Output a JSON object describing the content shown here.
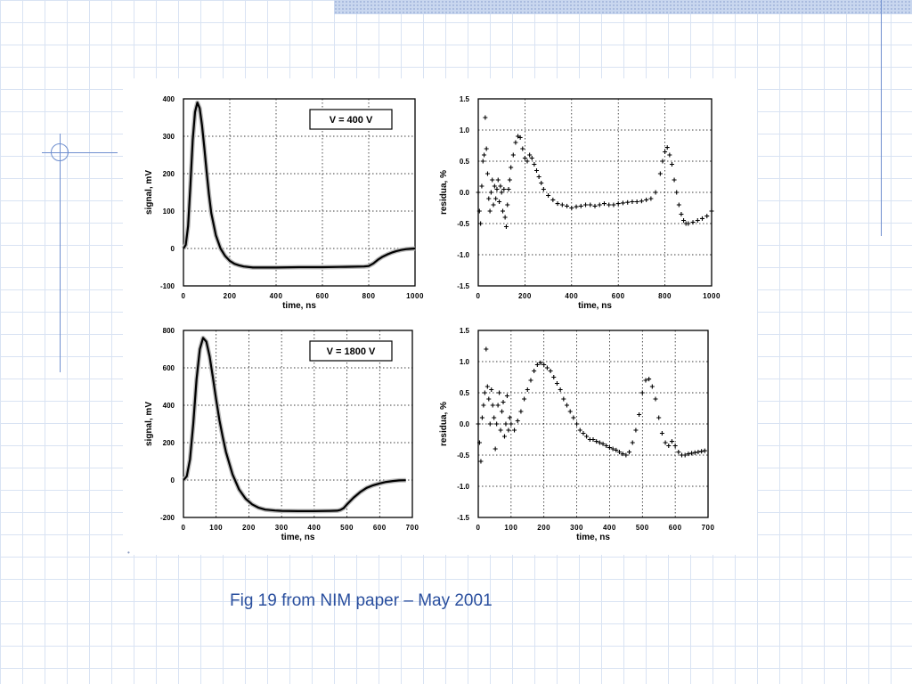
{
  "caption": "Fig 19 from NIM paper – May 2001",
  "chart_data": [
    {
      "type": "line",
      "panel": "top-left",
      "annotation": "V = 400 V",
      "xlabel": "time, ns",
      "ylabel": "signal, mV",
      "xlim": [
        0,
        1000
      ],
      "ylim": [
        -100,
        400
      ],
      "xticks": [
        0,
        200,
        400,
        600,
        800,
        1000
      ],
      "yticks": [
        -100,
        0,
        100,
        200,
        300,
        400
      ],
      "ytick_labels": [
        "-100",
        "0",
        "100",
        "200",
        "300",
        "400"
      ],
      "grid": true,
      "series": [
        {
          "x": [
            0,
            10,
            20,
            30,
            40,
            50,
            60,
            70,
            80,
            90,
            100,
            110,
            120,
            140,
            160,
            180,
            200,
            220,
            240,
            260,
            300,
            400,
            500,
            600,
            700,
            780,
            800,
            820,
            840,
            860,
            880,
            900,
            920,
            940,
            960,
            980,
            1000
          ],
          "values": [
            0,
            10,
            60,
            170,
            290,
            365,
            390,
            375,
            330,
            270,
            205,
            145,
            95,
            35,
            0,
            -20,
            -33,
            -41,
            -45,
            -48,
            -51,
            -51,
            -50,
            -50,
            -49,
            -48,
            -47,
            -40,
            -30,
            -22,
            -16,
            -11,
            -7,
            -4,
            -2,
            -1,
            0
          ]
        }
      ]
    },
    {
      "type": "scatter",
      "panel": "top-right",
      "xlabel": "time, ns",
      "ylabel": "residua, %",
      "xlim": [
        0,
        1000
      ],
      "ylim": [
        -1.5,
        1.5
      ],
      "xticks": [
        0,
        200,
        400,
        600,
        800,
        1000
      ],
      "yticks": [
        -1.5,
        -1.0,
        -0.5,
        0.0,
        0.5,
        1.0,
        1.5
      ],
      "ytick_labels": [
        "-1.5",
        "-1.0",
        "-0.5",
        "0.0",
        "0.5",
        "1.0",
        "1.5"
      ],
      "grid": true,
      "series": [
        {
          "x": [
            0,
            5,
            10,
            15,
            20,
            25,
            30,
            35,
            40,
            45,
            50,
            55,
            60,
            65,
            70,
            75,
            80,
            85,
            90,
            95,
            100,
            105,
            110,
            115,
            120,
            125,
            130,
            135,
            140,
            150,
            160,
            170,
            180,
            190,
            200,
            210,
            220,
            230,
            240,
            250,
            260,
            270,
            280,
            300,
            320,
            340,
            360,
            380,
            400,
            420,
            440,
            460,
            480,
            500,
            520,
            540,
            560,
            580,
            600,
            620,
            640,
            660,
            680,
            700,
            720,
            740,
            760,
            780,
            790,
            800,
            810,
            820,
            830,
            840,
            850,
            860,
            870,
            880,
            890,
            900,
            920,
            940,
            960,
            980,
            1000
          ],
          "values": [
            0.0,
            -0.3,
            -0.5,
            0.1,
            0.5,
            0.6,
            1.2,
            0.7,
            0.3,
            -0.1,
            -0.3,
            0.0,
            0.2,
            -0.2,
            0.1,
            -0.1,
            0.05,
            0.2,
            -0.15,
            0.1,
            0.0,
            -0.3,
            0.05,
            -0.4,
            -0.55,
            -0.2,
            0.05,
            0.2,
            0.4,
            0.6,
            0.8,
            0.9,
            0.88,
            0.7,
            0.55,
            0.5,
            0.6,
            0.55,
            0.45,
            0.35,
            0.25,
            0.15,
            0.05,
            -0.05,
            -0.12,
            -0.18,
            -0.2,
            -0.22,
            -0.25,
            -0.23,
            -0.22,
            -0.2,
            -0.2,
            -0.22,
            -0.2,
            -0.18,
            -0.2,
            -0.2,
            -0.18,
            -0.17,
            -0.16,
            -0.15,
            -0.15,
            -0.14,
            -0.12,
            -0.1,
            0.0,
            0.3,
            0.5,
            0.65,
            0.72,
            0.6,
            0.45,
            0.2,
            0.0,
            -0.2,
            -0.35,
            -0.45,
            -0.5,
            -0.5,
            -0.48,
            -0.45,
            -0.42,
            -0.38,
            -0.3
          ]
        }
      ]
    },
    {
      "type": "line",
      "panel": "bottom-left",
      "annotation": "V = 1800 V",
      "xlabel": "time, ns",
      "ylabel": "signal, mV",
      "xlim": [
        0,
        700
      ],
      "ylim": [
        -200,
        800
      ],
      "xticks": [
        0,
        100,
        200,
        300,
        400,
        500,
        600,
        700
      ],
      "yticks": [
        -200,
        0,
        200,
        400,
        600,
        800
      ],
      "ytick_labels": [
        "-200",
        "0",
        "200",
        "400",
        "600",
        "800"
      ],
      "grid": true,
      "series": [
        {
          "x": [
            0,
            10,
            20,
            30,
            40,
            50,
            60,
            70,
            80,
            90,
            100,
            110,
            120,
            130,
            150,
            170,
            190,
            210,
            230,
            250,
            280,
            300,
            350,
            400,
            450,
            470,
            480,
            490,
            500,
            520,
            540,
            560,
            580,
            600,
            620,
            640,
            660,
            680
          ],
          "values": [
            0,
            20,
            110,
            300,
            540,
            700,
            760,
            740,
            660,
            550,
            430,
            320,
            230,
            150,
            30,
            -50,
            -100,
            -130,
            -148,
            -158,
            -163,
            -165,
            -166,
            -166,
            -165,
            -164,
            -160,
            -150,
            -130,
            -95,
            -65,
            -42,
            -28,
            -18,
            -10,
            -5,
            -2,
            -1
          ]
        }
      ]
    },
    {
      "type": "scatter",
      "panel": "bottom-right",
      "xlabel": "time, ns",
      "ylabel": "residua, %",
      "xlim": [
        0,
        700
      ],
      "ylim": [
        -1.5,
        1.5
      ],
      "xticks": [
        0,
        100,
        200,
        300,
        400,
        500,
        600,
        700
      ],
      "yticks": [
        -1.5,
        -1.0,
        -0.5,
        0.0,
        0.5,
        1.0,
        1.5
      ],
      "ytick_labels": [
        "-1.5",
        "-1.0",
        "-0.5",
        "0.0",
        "0.5",
        "1.0",
        "1.5"
      ],
      "grid": true,
      "series": [
        {
          "x": [
            0,
            4,
            8,
            12,
            16,
            20,
            24,
            28,
            32,
            36,
            40,
            44,
            48,
            52,
            56,
            60,
            64,
            68,
            72,
            76,
            80,
            84,
            88,
            92,
            96,
            100,
            110,
            120,
            130,
            140,
            150,
            160,
            170,
            180,
            190,
            200,
            210,
            220,
            230,
            240,
            250,
            260,
            270,
            280,
            290,
            300,
            310,
            320,
            330,
            340,
            350,
            360,
            370,
            380,
            390,
            400,
            410,
            420,
            430,
            440,
            450,
            460,
            470,
            480,
            490,
            500,
            510,
            520,
            530,
            540,
            550,
            560,
            570,
            580,
            590,
            600,
            610,
            620,
            630,
            640,
            650,
            660,
            670,
            680,
            690
          ],
          "values": [
            0.0,
            -0.3,
            -0.6,
            0.1,
            0.3,
            0.5,
            1.2,
            0.6,
            0.4,
            0.0,
            0.55,
            0.3,
            0.1,
            -0.4,
            0.0,
            0.3,
            0.5,
            -0.1,
            0.2,
            0.35,
            -0.2,
            0.0,
            0.45,
            -0.1,
            0.1,
            0.0,
            -0.1,
            0.05,
            0.2,
            0.4,
            0.55,
            0.7,
            0.85,
            0.95,
            0.98,
            0.95,
            0.9,
            0.85,
            0.75,
            0.65,
            0.55,
            0.4,
            0.3,
            0.2,
            0.1,
            0.0,
            -0.1,
            -0.15,
            -0.2,
            -0.25,
            -0.25,
            -0.28,
            -0.3,
            -0.32,
            -0.35,
            -0.38,
            -0.4,
            -0.42,
            -0.45,
            -0.48,
            -0.5,
            -0.45,
            -0.3,
            -0.1,
            0.15,
            0.5,
            0.7,
            0.72,
            0.6,
            0.4,
            0.1,
            -0.15,
            -0.3,
            -0.35,
            -0.28,
            -0.35,
            -0.45,
            -0.5,
            -0.5,
            -0.48,
            -0.47,
            -0.46,
            -0.45,
            -0.44,
            -0.43
          ]
        }
      ]
    }
  ]
}
